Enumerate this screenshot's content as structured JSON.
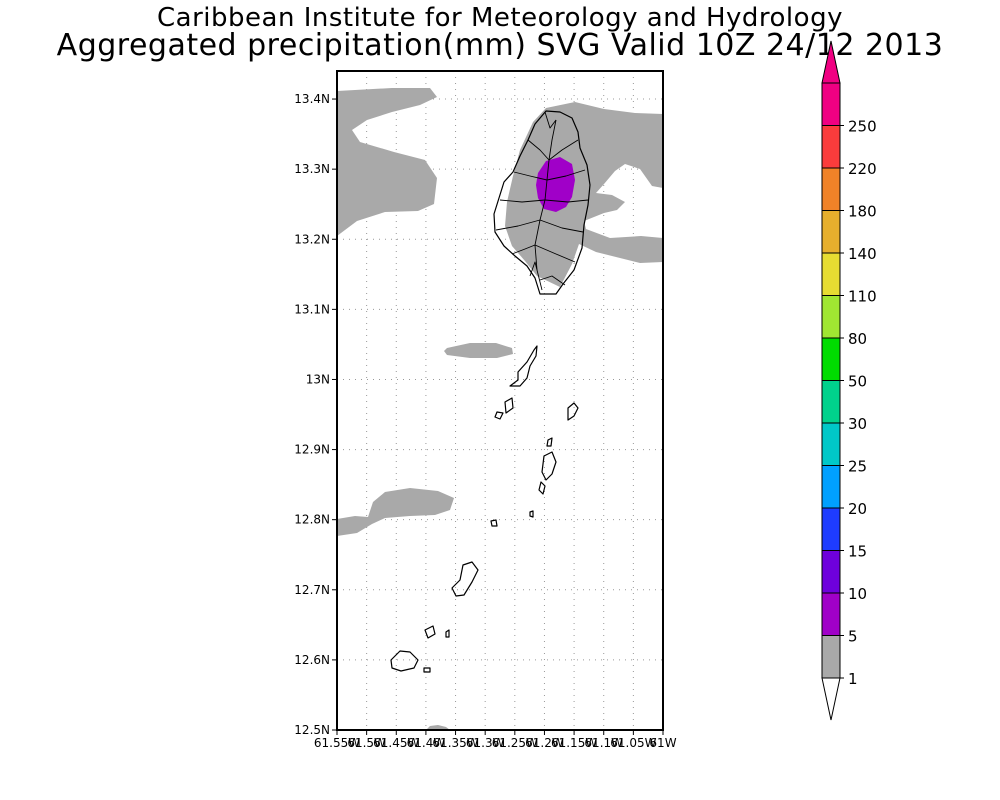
{
  "header": {
    "title_line1": "Caribbean Institute for Meteorology and Hydrology",
    "title_line2": "Aggregated precipitation(mm) SVG Valid 10Z 24/12 2013"
  },
  "map": {
    "lat_range": [
      12.5,
      13.44
    ],
    "lon_range": [
      -61.55,
      -61.0
    ],
    "y_ticks": [
      {
        "value": 13.4,
        "label": "13.4N"
      },
      {
        "value": 13.3,
        "label": "13.3N"
      },
      {
        "value": 13.2,
        "label": "13.2N"
      },
      {
        "value": 13.1,
        "label": "13.1N"
      },
      {
        "value": 13.0,
        "label": "13N"
      },
      {
        "value": 12.9,
        "label": "12.9N"
      },
      {
        "value": 12.8,
        "label": "12.8N"
      },
      {
        "value": 12.7,
        "label": "12.7N"
      },
      {
        "value": 12.6,
        "label": "12.6N"
      },
      {
        "value": 12.5,
        "label": "12.5N"
      }
    ],
    "x_ticks": [
      {
        "value": -61.55,
        "label": "61.55W"
      },
      {
        "value": -61.5,
        "label": "61.5W"
      },
      {
        "value": -61.45,
        "label": "61.45W"
      },
      {
        "value": -61.4,
        "label": "61.4W"
      },
      {
        "value": -61.35,
        "label": "61.35W"
      },
      {
        "value": -61.3,
        "label": "61.3W"
      },
      {
        "value": -61.25,
        "label": "61.25W"
      },
      {
        "value": -61.2,
        "label": "61.2W"
      },
      {
        "value": -61.15,
        "label": "61.15W"
      },
      {
        "value": -61.1,
        "label": "61.1W"
      },
      {
        "value": -61.05,
        "label": "61.05W"
      },
      {
        "value": -61.0,
        "label": "61W"
      }
    ],
    "grid": "dotted",
    "precip_light_color": "#a9a9a9",
    "precip_5_10_color": "#a000c8"
  },
  "colorbar": {
    "levels": [
      {
        "label": "1",
        "color": "#a9a9a9"
      },
      {
        "label": "5",
        "color": "#a000c8"
      },
      {
        "label": "10",
        "color": "#6e00dc"
      },
      {
        "label": "15",
        "color": "#1e3cff"
      },
      {
        "label": "20",
        "color": "#00a0ff"
      },
      {
        "label": "25",
        "color": "#00c8c8"
      },
      {
        "label": "30",
        "color": "#00d28c"
      },
      {
        "label": "50",
        "color": "#00dc00"
      },
      {
        "label": "80",
        "color": "#a0e632"
      },
      {
        "label": "110",
        "color": "#e6dc32"
      },
      {
        "label": "140",
        "color": "#e6af2d"
      },
      {
        "label": "180",
        "color": "#f08228"
      },
      {
        "label": "220",
        "color": "#fa3c3c"
      },
      {
        "label": "250",
        "color": "#f00082"
      }
    ],
    "under_color": "#ffffff",
    "over_color": "#f00082"
  }
}
